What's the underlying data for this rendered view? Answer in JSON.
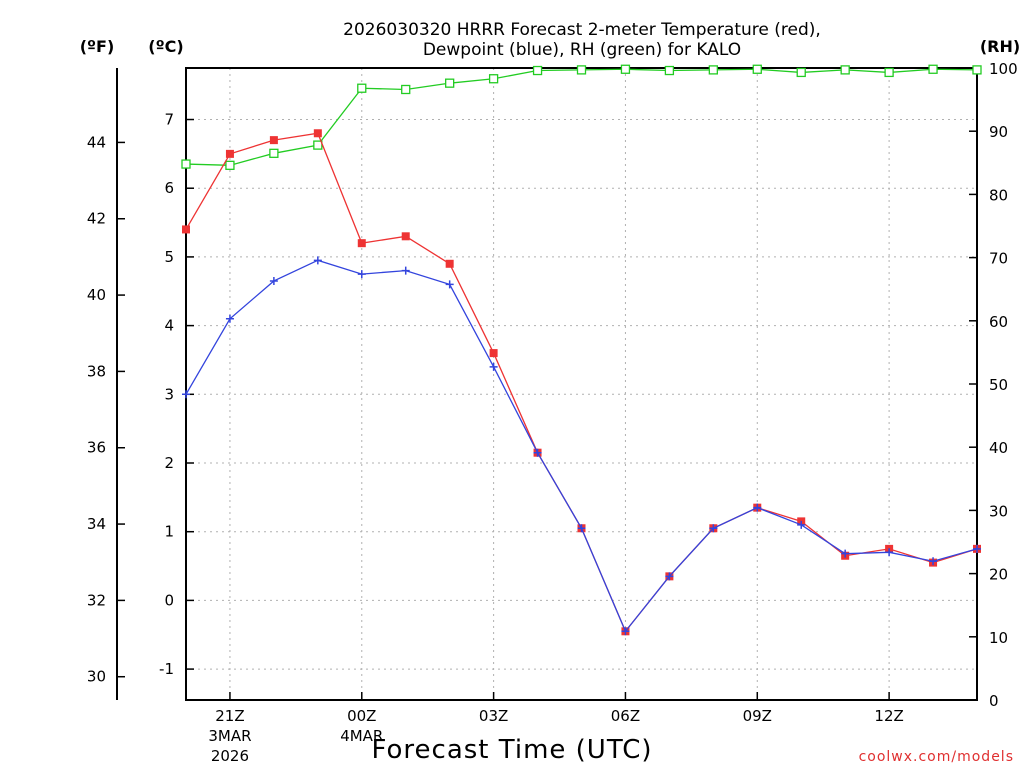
{
  "chart_data": {
    "type": "line",
    "title_line1": "2026030320 HRRR Forecast 2-meter Temperature (red),",
    "title_line2": "Dewpoint (blue), RH (green) for KALO",
    "xlabel": "Forecast Time (UTC)",
    "credit": "coolwx.com/models",
    "units": {
      "fahrenheit": "(ºF)",
      "celsius": "(ºC)",
      "rh": "(RH)"
    },
    "x_hours": [
      20,
      21,
      22,
      23,
      24,
      25,
      26,
      27,
      28,
      29,
      30,
      31,
      32,
      33,
      34,
      35,
      36,
      37,
      38
    ],
    "xlim": [
      20,
      38
    ],
    "x_ticks": [
      {
        "hour": 21,
        "label": "21Z",
        "date1": "3MAR",
        "date2": "2026"
      },
      {
        "hour": 24,
        "label": "00Z",
        "date1": "4MAR",
        "date2": ""
      },
      {
        "hour": 27,
        "label": "03Z",
        "date1": "",
        "date2": ""
      },
      {
        "hour": 30,
        "label": "06Z",
        "date1": "",
        "date2": ""
      },
      {
        "hour": 33,
        "label": "09Z",
        "date1": "",
        "date2": ""
      },
      {
        "hour": 36,
        "label": "12Z",
        "date1": "",
        "date2": ""
      }
    ],
    "celsius_axis": {
      "lim": [
        -1.45,
        7.75
      ],
      "ticks": [
        -1,
        0,
        1,
        2,
        3,
        4,
        5,
        6,
        7
      ]
    },
    "fahrenheit_axis": {
      "ticks": [
        30,
        32,
        34,
        36,
        38,
        40,
        42,
        44
      ]
    },
    "rh_axis": {
      "lim": [
        0,
        100
      ],
      "ticks": [
        0,
        10,
        20,
        30,
        40,
        50,
        60,
        70,
        80,
        90,
        100
      ]
    },
    "series": [
      {
        "name": "Temperature",
        "unit": "C",
        "color": "#ee3333",
        "marker": "filled-square",
        "values": [
          5.4,
          6.5,
          6.7,
          6.8,
          5.2,
          5.3,
          4.9,
          3.6,
          2.15,
          1.05,
          -0.45,
          0.35,
          1.05,
          1.35,
          1.15,
          0.65,
          0.75,
          0.55,
          0.75
        ]
      },
      {
        "name": "Dewpoint",
        "unit": "C",
        "color": "#3344dd",
        "marker": "plus",
        "values": [
          3.0,
          4.1,
          4.65,
          4.95,
          4.75,
          4.8,
          4.6,
          3.4,
          2.15,
          1.05,
          -0.45,
          0.35,
          1.05,
          1.35,
          1.1,
          0.68,
          0.7,
          0.57,
          0.75
        ]
      },
      {
        "name": "RH",
        "unit": "%",
        "color": "#22cc22",
        "marker": "open-square",
        "values": [
          84.8,
          84.6,
          86.5,
          87.8,
          96.8,
          96.6,
          97.6,
          98.3,
          99.6,
          99.7,
          99.8,
          99.6,
          99.7,
          99.8,
          99.3,
          99.7,
          99.3,
          99.8,
          99.7
        ]
      }
    ]
  }
}
